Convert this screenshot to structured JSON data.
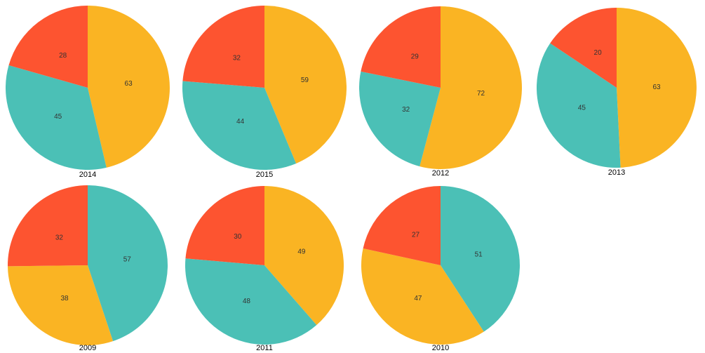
{
  "colors": {
    "red": "#fd5430",
    "teal": "#4bc0b6",
    "yellow": "#fab423"
  },
  "chart_data": [
    {
      "type": "pie",
      "title": "2014",
      "slices": [
        {
          "value": 63,
          "color": "#fab423"
        },
        {
          "value": 45,
          "color": "#4bc0b6"
        },
        {
          "value": 28,
          "color": "#fd5430"
        }
      ]
    },
    {
      "type": "pie",
      "title": "2015",
      "slices": [
        {
          "value": 59,
          "color": "#fab423"
        },
        {
          "value": 44,
          "color": "#4bc0b6"
        },
        {
          "value": 32,
          "color": "#fd5430"
        }
      ]
    },
    {
      "type": "pie",
      "title": "2012",
      "slices": [
        {
          "value": 72,
          "color": "#fab423"
        },
        {
          "value": 32,
          "color": "#4bc0b6"
        },
        {
          "value": 29,
          "color": "#fd5430"
        }
      ]
    },
    {
      "type": "pie",
      "title": "2013",
      "slices": [
        {
          "value": 63,
          "color": "#fab423"
        },
        {
          "value": 45,
          "color": "#4bc0b6"
        },
        {
          "value": 20,
          "color": "#fd5430"
        }
      ]
    },
    {
      "type": "pie",
      "title": "2009",
      "slices": [
        {
          "value": 57,
          "color": "#4bc0b6"
        },
        {
          "value": 38,
          "color": "#fab423"
        },
        {
          "value": 32,
          "color": "#fd5430"
        }
      ]
    },
    {
      "type": "pie",
      "title": "2011",
      "slices": [
        {
          "value": 49,
          "color": "#fab423"
        },
        {
          "value": 48,
          "color": "#4bc0b6"
        },
        {
          "value": 30,
          "color": "#fd5430"
        }
      ]
    },
    {
      "type": "pie",
      "title": "2010",
      "slices": [
        {
          "value": 51,
          "color": "#4bc0b6"
        },
        {
          "value": 47,
          "color": "#fab423"
        },
        {
          "value": 27,
          "color": "#fd5430"
        }
      ]
    }
  ]
}
